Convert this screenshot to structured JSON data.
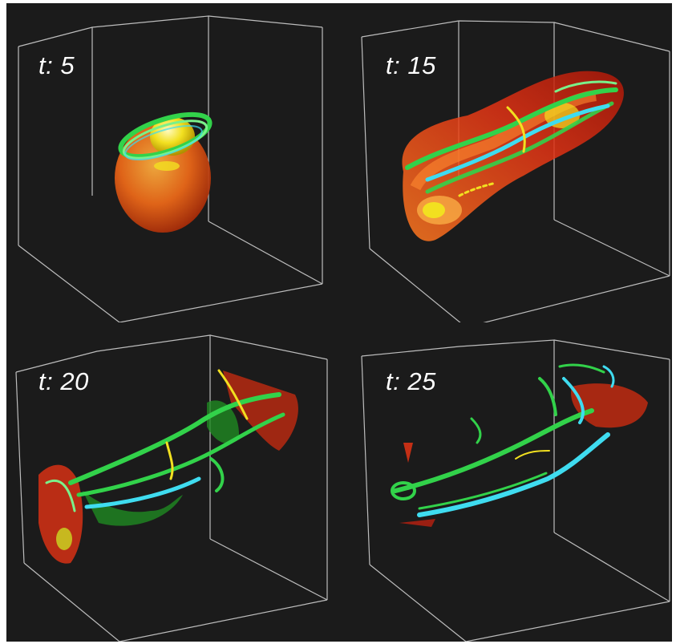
{
  "panels": [
    {
      "id": "t5",
      "label": "t: 5"
    },
    {
      "id": "t15",
      "label": "t: 15"
    },
    {
      "id": "t20",
      "label": "t: 20"
    },
    {
      "id": "t25",
      "label": "t: 25"
    }
  ],
  "colors": {
    "background": "#1b1b1b",
    "box_edges": "#cfcfcf",
    "red_isosurface": "#e23214",
    "orange_isosurface": "#f06a18",
    "green_vortex": "#32d24a",
    "yellow_core": "#f2e020",
    "cyan_vortex": "#3fdcf0"
  }
}
